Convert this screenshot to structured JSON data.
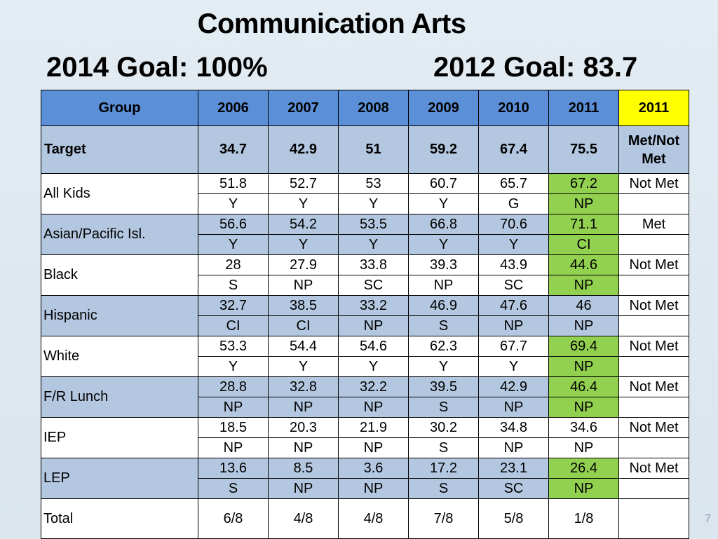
{
  "title": {
    "line1": "Communication Arts",
    "goal_2014": "2014 Goal:  100%",
    "goal_2012": "2012 Goal:  83.7"
  },
  "table": {
    "headers": [
      "Group",
      "2006",
      "2007",
      "2008",
      "2009",
      "2010",
      "2011",
      "2011"
    ],
    "target": {
      "label": "Target",
      "values": [
        "34.7",
        "42.9",
        "51",
        "59.2",
        "67.4",
        "75.5"
      ],
      "status": "Met/Not Met"
    },
    "groups": [
      {
        "label": "All Kids",
        "scores": [
          "51.8",
          "52.7",
          "53",
          "60.7",
          "65.7",
          "67.2"
        ],
        "codes": [
          "Y",
          "Y",
          "Y",
          "Y",
          "G",
          "NP"
        ],
        "status": "Not Met"
      },
      {
        "label": "Asian/Pacific Isl.",
        "scores": [
          "56.6",
          "54.2",
          "53.5",
          "66.8",
          "70.6",
          "71.1"
        ],
        "codes": [
          "Y",
          "Y",
          "Y",
          "Y",
          "Y",
          "CI"
        ],
        "status": "Met"
      },
      {
        "label": "Black",
        "scores": [
          "28",
          "27.9",
          "33.8",
          "39.3",
          "43.9",
          "44.6"
        ],
        "codes": [
          "S",
          "NP",
          "SC",
          "NP",
          "SC",
          "NP"
        ],
        "status": "Not Met"
      },
      {
        "label": "Hispanic",
        "scores": [
          "32.7",
          "38.5",
          "33.2",
          "46.9",
          "47.6",
          "46"
        ],
        "codes": [
          "CI",
          "CI",
          "NP",
          "S",
          "NP",
          "NP"
        ],
        "status": "Not Met"
      },
      {
        "label": "White",
        "scores": [
          "53.3",
          "54.4",
          "54.6",
          "62.3",
          "67.7",
          "69.4"
        ],
        "codes": [
          "Y",
          "Y",
          "Y",
          "Y",
          "Y",
          "NP"
        ],
        "status": "Not Met"
      },
      {
        "label": "F/R Lunch",
        "scores": [
          "28.8",
          "32.8",
          "32.2",
          "39.5",
          "42.9",
          "46.4"
        ],
        "codes": [
          "NP",
          "NP",
          "NP",
          "S",
          "NP",
          "NP"
        ],
        "status": "Not Met"
      },
      {
        "label": "IEP",
        "scores": [
          "18.5",
          "20.3",
          "21.9",
          "30.2",
          "34.8",
          "34.6"
        ],
        "codes": [
          "NP",
          "NP",
          "NP",
          "S",
          "NP",
          "NP"
        ],
        "status": "Not Met"
      },
      {
        "label": "LEP",
        "scores": [
          "13.6",
          "8.5",
          "3.6",
          "17.2",
          "23.1",
          "26.4"
        ],
        "codes": [
          "S",
          "NP",
          "NP",
          "S",
          "SC",
          "NP"
        ],
        "status": "Not Met"
      }
    ],
    "total": {
      "label": "Total",
      "values": [
        "6/8",
        "4/8",
        "4/8",
        "7/8",
        "5/8",
        "1/8"
      ]
    }
  },
  "page_number": "7",
  "colors": {
    "header_blue": "#5b8fd8",
    "row_light_blue": "#b4c7e0",
    "highlight_green": "#92d050",
    "header_yellow": "#ffff00"
  }
}
